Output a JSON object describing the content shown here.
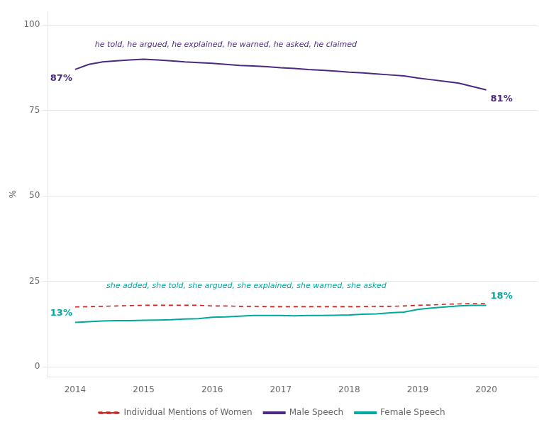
{
  "chart_data": {
    "type": "line",
    "ylabel": "%",
    "x": [
      2014,
      2014.2,
      2014.4,
      2014.6,
      2014.8,
      2015,
      2015.2,
      2015.4,
      2015.6,
      2015.8,
      2016,
      2016.2,
      2016.4,
      2016.6,
      2016.8,
      2017,
      2017.2,
      2017.4,
      2017.6,
      2017.8,
      2018,
      2018.2,
      2018.4,
      2018.6,
      2018.8,
      2019,
      2019.2,
      2019.4,
      2019.6,
      2019.8,
      2020
    ],
    "series": [
      {
        "name": "Individual Mentions of Women",
        "color": "#cc2222",
        "line_style": "dashed",
        "values": [
          17.5,
          17.6,
          17.7,
          17.8,
          17.9,
          18,
          18,
          18,
          18,
          18,
          17.8,
          17.8,
          17.7,
          17.7,
          17.6,
          17.6,
          17.6,
          17.6,
          17.6,
          17.6,
          17.6,
          17.6,
          17.7,
          17.7,
          17.8,
          18,
          18.1,
          18.3,
          18.4,
          18.5,
          18.5
        ]
      },
      {
        "name": "Male Speech",
        "color": "#4b2882",
        "line_style": "solid",
        "values": [
          87,
          88.5,
          89.2,
          89.5,
          89.8,
          90,
          89.8,
          89.5,
          89.2,
          89,
          88.8,
          88.5,
          88.2,
          88,
          87.8,
          87.5,
          87.3,
          87,
          86.8,
          86.5,
          86.2,
          86,
          85.7,
          85.4,
          85.1,
          84.5,
          84,
          83.5,
          83,
          82,
          81
        ],
        "value_labels": [
          "87%",
          null,
          null,
          null,
          null,
          null,
          null,
          null,
          null,
          null,
          null,
          null,
          null,
          null,
          null,
          null,
          null,
          null,
          null,
          null,
          null,
          null,
          null,
          null,
          null,
          null,
          null,
          null,
          null,
          null,
          "81%"
        ]
      },
      {
        "name": "Female Speech",
        "color": "#00a89d",
        "line_style": "solid",
        "values": [
          13,
          13.2,
          13.4,
          13.5,
          13.5,
          13.6,
          13.7,
          13.8,
          14,
          14.1,
          14.5,
          14.6,
          14.8,
          15,
          15,
          15,
          14.9,
          15,
          15,
          15.1,
          15.2,
          15.4,
          15.5,
          15.8,
          16,
          16.8,
          17.2,
          17.5,
          17.8,
          18,
          18
        ],
        "value_labels": [
          "13%",
          null,
          null,
          null,
          null,
          null,
          null,
          null,
          null,
          null,
          null,
          null,
          null,
          null,
          null,
          null,
          null,
          null,
          null,
          null,
          null,
          null,
          null,
          null,
          null,
          null,
          null,
          null,
          null,
          null,
          "18%"
        ]
      }
    ],
    "annotations": [
      {
        "text": "he told, he argued, he explained, he warned, he asked, he claimed",
        "x": 2016.2,
        "y": 93,
        "color": "#4b2882"
      },
      {
        "text": "she added, she told, she argued, she explained, she warned, she asked",
        "x": 2016.5,
        "y": 22.5,
        "color": "#00a89d"
      }
    ],
    "xlim": [
      2013.6,
      2020.75
    ],
    "xticks": [
      2014,
      2015,
      2016,
      2017,
      2018,
      2019,
      2020
    ],
    "ylim": [
      -3,
      104
    ],
    "yticks": [
      0,
      25,
      50,
      75,
      100
    ],
    "grid": "y",
    "legend": "bottom",
    "marker": "none"
  }
}
